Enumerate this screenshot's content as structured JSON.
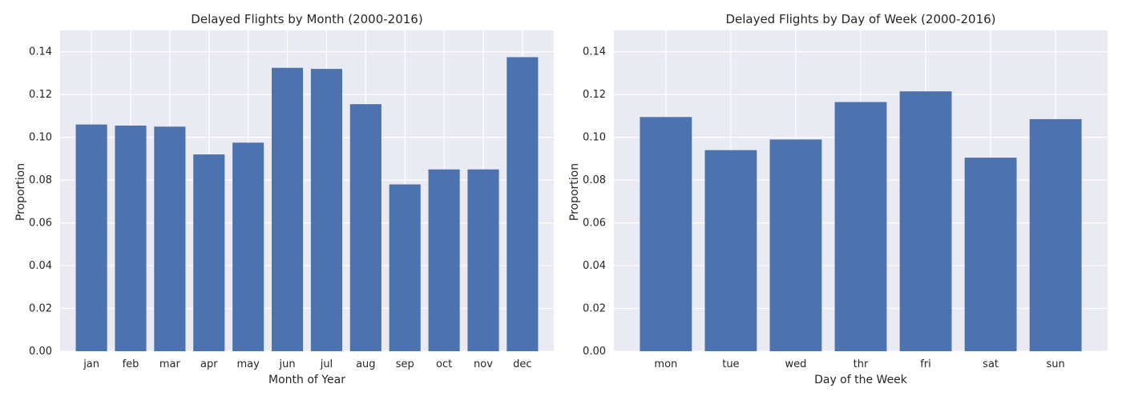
{
  "chart_data": [
    {
      "type": "bar",
      "title": "Delayed Flights by Month (2000-2016)",
      "xlabel": "Month of Year",
      "ylabel": "Proportion",
      "ylim": [
        0,
        0.15
      ],
      "yticks": [
        "0.00",
        "0.02",
        "0.04",
        "0.06",
        "0.08",
        "0.10",
        "0.12",
        "0.14"
      ],
      "categories": [
        "jan",
        "feb",
        "mar",
        "apr",
        "may",
        "jun",
        "jul",
        "aug",
        "sep",
        "oct",
        "nov",
        "dec"
      ],
      "values": [
        0.106,
        0.1055,
        0.105,
        0.092,
        0.0975,
        0.1325,
        0.132,
        0.1155,
        0.078,
        0.085,
        0.085,
        0.1375
      ],
      "grid": true,
      "bar_color": "#4c72b0",
      "background": "#eaeaf2"
    },
    {
      "type": "bar",
      "title": "Delayed Flights by Day of Week (2000-2016)",
      "xlabel": "Day of the Week",
      "ylabel": "Proportion",
      "ylim": [
        0,
        0.15
      ],
      "yticks": [
        "0.00",
        "0.02",
        "0.04",
        "0.06",
        "0.08",
        "0.10",
        "0.12",
        "0.14"
      ],
      "categories": [
        "mon",
        "tue",
        "wed",
        "thr",
        "fri",
        "sat",
        "sun"
      ],
      "values": [
        0.1095,
        0.094,
        0.099,
        0.1165,
        0.1215,
        0.0905,
        0.1085
      ],
      "grid": true,
      "bar_color": "#4c72b0",
      "background": "#eaeaf2"
    }
  ]
}
